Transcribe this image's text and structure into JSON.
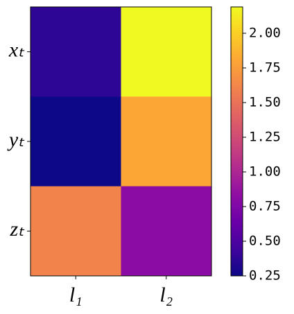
{
  "chart_data": {
    "type": "heatmap",
    "x": [
      "l₁",
      "l₂"
    ],
    "y": [
      "xₜ",
      "yₜ",
      "zₜ"
    ],
    "values": [
      [
        0.37,
        2.19
      ],
      [
        0.25,
        1.8
      ],
      [
        1.61,
        0.81
      ]
    ],
    "colormap": "plasma",
    "clim": [
      0.25,
      2.19
    ],
    "cticks": [
      0.25,
      {
        "value": 0.5,
        "label": "0.50"
      },
      0.75,
      {
        "value": 1,
        "label": "1.00"
      },
      1.25,
      {
        "value": 1.5,
        "label": "1.50"
      },
      1.75,
      {
        "value": 2,
        "label": "2.00"
      }
    ]
  }
}
